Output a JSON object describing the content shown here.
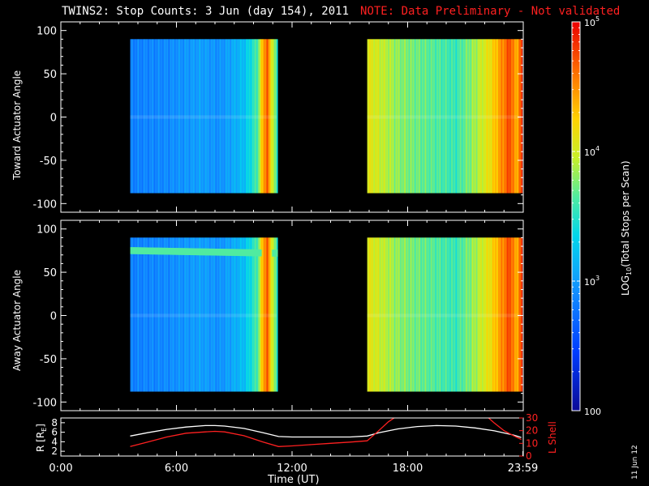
{
  "title": {
    "main": "TWINS2: Stop Counts:  3 Jun (day 154), 2011",
    "note": "NOTE: Data Preliminary - Not validated"
  },
  "date_stamp": "11 Jun 12",
  "colors": {
    "note": "#ff2020",
    "ephemeris_r": "#ffffff",
    "ephemeris_lshell": "#ff2020"
  },
  "chart_data": [
    {
      "type": "heatmap",
      "name": "toward",
      "ylabel": "Toward Actuator Angle",
      "ylim": [
        -110,
        110
      ],
      "yticks": [
        100,
        50,
        0,
        -50,
        -100
      ],
      "xlim": [
        0,
        24
      ],
      "data_extent": {
        "y": [
          -88,
          90
        ]
      },
      "segments": [
        {
          "x": [
            3.6,
            11.2
          ],
          "profile": [
            [
              3.6,
              0.28
            ],
            [
              5.5,
              0.3
            ],
            [
              7.3,
              0.34
            ],
            [
              8.2,
              0.31
            ],
            [
              9.5,
              0.4
            ],
            [
              10.2,
              0.55
            ],
            [
              10.5,
              0.82
            ],
            [
              10.7,
              0.9
            ],
            [
              10.85,
              0.75
            ],
            [
              11.2,
              0.5
            ]
          ]
        },
        {
          "x": [
            15.9,
            23.9
          ],
          "profile": [
            [
              15.9,
              0.7
            ],
            [
              16.5,
              0.66
            ],
            [
              17.5,
              0.6
            ],
            [
              19.0,
              0.56
            ],
            [
              20.5,
              0.52
            ],
            [
              21.5,
              0.62
            ],
            [
              22.3,
              0.72
            ],
            [
              22.9,
              0.84
            ],
            [
              23.3,
              0.92
            ],
            [
              23.6,
              0.78
            ],
            [
              23.9,
              0.92
            ]
          ]
        }
      ]
    },
    {
      "type": "heatmap",
      "name": "away",
      "ylabel": "Away Actuator Angle",
      "ylim": [
        -110,
        110
      ],
      "yticks": [
        100,
        50,
        0,
        -50,
        -100
      ],
      "xlim": [
        0,
        24
      ],
      "data_extent": {
        "y": [
          -88,
          90
        ]
      },
      "band": {
        "y_start": 75,
        "y_end": 72,
        "level": 0.55
      },
      "segments": [
        {
          "x": [
            3.6,
            11.2
          ],
          "profile": [
            [
              3.6,
              0.28
            ],
            [
              5.5,
              0.3
            ],
            [
              7.3,
              0.34
            ],
            [
              8.2,
              0.31
            ],
            [
              9.5,
              0.4
            ],
            [
              10.2,
              0.55
            ],
            [
              10.5,
              0.82
            ],
            [
              10.7,
              0.9
            ],
            [
              10.85,
              0.75
            ],
            [
              11.2,
              0.5
            ]
          ]
        },
        {
          "x": [
            15.9,
            23.9
          ],
          "profile": [
            [
              15.9,
              0.7
            ],
            [
              16.5,
              0.66
            ],
            [
              17.5,
              0.6
            ],
            [
              19.0,
              0.56
            ],
            [
              20.5,
              0.52
            ],
            [
              21.5,
              0.62
            ],
            [
              22.3,
              0.72
            ],
            [
              22.9,
              0.84
            ],
            [
              23.3,
              0.92
            ],
            [
              23.6,
              0.78
            ],
            [
              23.9,
              0.92
            ]
          ]
        }
      ]
    },
    {
      "type": "line",
      "name": "ephemeris",
      "xlabel": "Time (UT)",
      "xlim": [
        0,
        24
      ],
      "xticks": [
        {
          "v": 0,
          "label": "0:00"
        },
        {
          "v": 6,
          "label": "6:00"
        },
        {
          "v": 12,
          "label": "12:00"
        },
        {
          "v": 18,
          "label": "18:00"
        },
        {
          "v": 23.98,
          "label": "23:59"
        }
      ],
      "ylabel_left": "R [R",
      "ylabel_left_sub": "E",
      "ylabel_left_close": "]",
      "ylim_left": [
        1,
        9
      ],
      "yticks_left": [
        2,
        4,
        6,
        8
      ],
      "ylabel_right": "L Shell",
      "ylim_right": [
        0,
        30
      ],
      "yticks_right": [
        0,
        10,
        20,
        30
      ],
      "series": [
        {
          "axis": "left",
          "color": "#ffffff",
          "x": [
            3.6,
            4.5,
            5.5,
            6.5,
            7.5,
            8.0,
            8.5,
            9.5,
            10.5,
            11.3,
            12.0,
            13.0,
            14.0,
            15.0,
            15.9,
            16.5,
            17.5,
            18.5,
            19.5,
            20.5,
            21.5,
            22.5,
            23.5,
            23.9
          ],
          "y": [
            5.2,
            5.9,
            6.6,
            7.1,
            7.4,
            7.4,
            7.3,
            6.8,
            5.9,
            5.1,
            5.0,
            5.0,
            5.0,
            5.0,
            5.2,
            5.9,
            6.7,
            7.2,
            7.4,
            7.3,
            6.9,
            6.3,
            5.4,
            4.9
          ]
        },
        {
          "axis": "right",
          "color": "#ff2020",
          "x": [
            3.6,
            4.5,
            5.5,
            6.5,
            7.5,
            8.0,
            8.5,
            9.5,
            10.5,
            11.3,
            12.0,
            13.0,
            14.0,
            15.0,
            15.9,
            16.5,
            17.0,
            17.3
          ],
          "y": [
            7.5,
            11,
            15,
            18,
            19,
            19.5,
            19,
            16,
            11,
            7.5,
            8,
            9,
            10,
            11,
            12,
            20,
            27,
            30
          ]
        },
        {
          "axis": "right",
          "color": "#ff2020",
          "x": [
            22.2,
            22.5,
            23.0,
            23.5,
            23.9
          ],
          "y": [
            30,
            26,
            20,
            16,
            13
          ]
        }
      ]
    },
    {
      "type": "colorbar",
      "label": "LOG10(Total Stops per Scan)",
      "label_prefix": "LOG",
      "label_sub": "10",
      "label_suffix": "(Total Stops per Scan)",
      "scale": "log",
      "range": [
        100,
        100000
      ],
      "ticks": [
        {
          "v": 5,
          "base": "10",
          "exp": "5"
        },
        {
          "v": 4,
          "base": "10",
          "exp": "4"
        },
        {
          "v": 3,
          "base": "10",
          "exp": "3"
        },
        {
          "v": 2,
          "base": "100",
          "exp": ""
        }
      ]
    }
  ]
}
